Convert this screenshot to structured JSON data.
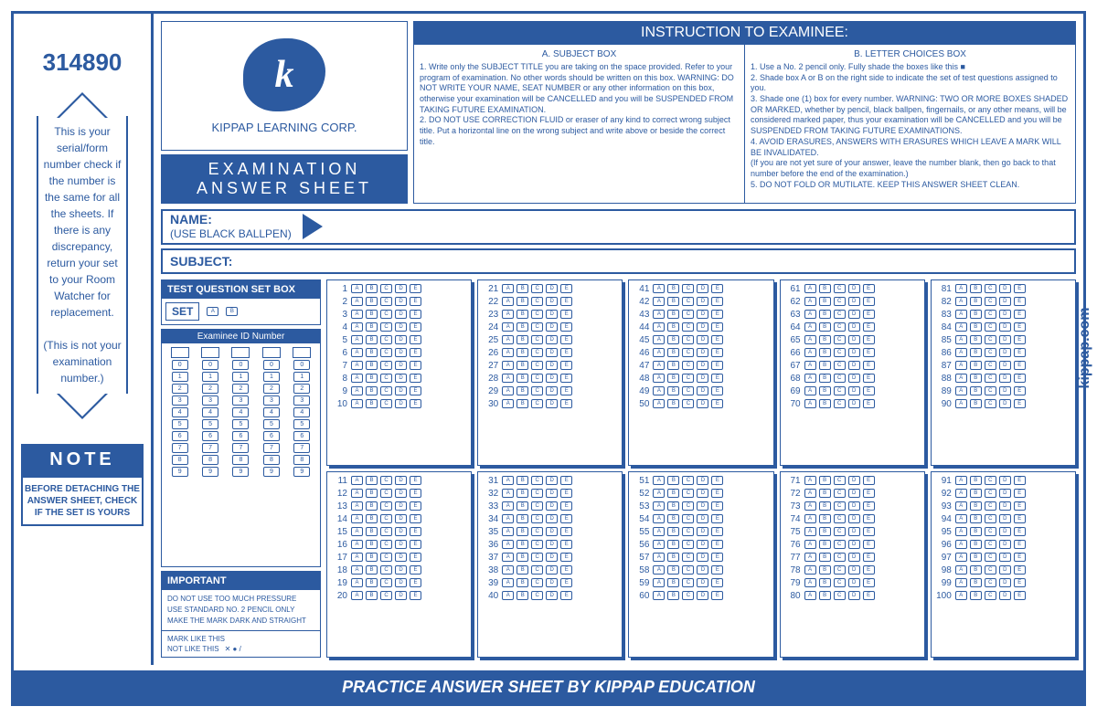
{
  "serial": "314890",
  "left_note": {
    "body": "This is your serial/form number check if the number is the same for all the sheets. If there is any discrepancy, return your set to your Room Watcher for replacement.",
    "paren": "(This is not your examination number.)"
  },
  "note": {
    "title": "NOTE",
    "body": "BEFORE DETACHING THE ANSWER SHEET, CHECK IF THE SET IS YOURS"
  },
  "logo": {
    "letter": "k",
    "company": "KIPPAP LEARNING CORP."
  },
  "exam_title_1": "EXAMINATION",
  "exam_title_2": "ANSWER SHEET",
  "instr": {
    "header": "INSTRUCTION TO EXAMINEE:",
    "a_title": "A. SUBJECT BOX",
    "a_body": "1. Write only the SUBJECT TITLE you are taking on the space provided. Refer to your program of examination. No other words should be written on this box. WARNING: DO NOT WRITE YOUR NAME, SEAT NUMBER or any other information on this box, otherwise your examination will be CANCELLED and you will be SUSPENDED FROM TAKING FUTURE EXAMINATION.\n2. DO NOT USE CORRECTION FLUID or eraser of any kind to correct wrong subject title. Put a horizontal line on the wrong subject and write above or beside the correct title.",
    "b_title": "B. LETTER CHOICES BOX",
    "b_body": "1. Use a No. 2 pencil only. Fully shade the boxes like this ■\n2. Shade box A or B on the right side to indicate the set of test questions assigned to you.\n3. Shade one (1) box for every number. WARNING: TWO OR MORE BOXES SHADED OR MARKED, whether by pencil, black ballpen, fingernails, or any other means, will be considered marked paper, thus your examination will be CANCELLED and you will be SUSPENDED FROM TAKING FUTURE EXAMINATIONS.\n4. AVOID ERASURES, ANSWERS WITH ERASURES WHICH LEAVE A MARK WILL BE INVALIDATED.\n(If you are not yet sure of your answer, leave the number blank, then go back to that number before the end of the examination.)\n5. DO NOT FOLD OR MUTILATE. KEEP THIS ANSWER SHEET CLEAN."
  },
  "name_label": "NAME:",
  "name_sub": "(USE BLACK BALLPEN)",
  "subject_label": "SUBJECT:",
  "tq_title": "TEST QUESTION SET BOX",
  "set_label": "SET",
  "examinee_label": "Examinee ID Number",
  "important": {
    "title": "IMPORTANT",
    "l1": "DO NOT USE TOO MUCH PRESSURE",
    "l2": "USE STANDARD NO. 2 PENCIL ONLY",
    "l3": "MAKE THE MARK DARK AND STRAIGHT",
    "m1": "MARK LIKE THIS",
    "m2": "NOT LIKE THIS"
  },
  "choices": [
    "A",
    "B",
    "C",
    "D",
    "E"
  ],
  "side_url": "kippap.com",
  "footer": "PRACTICE ANSWER SHEET BY KIPPAP EDUCATION",
  "colors": {
    "primary": "#2c5aa0"
  },
  "question_range": {
    "start": 1,
    "end": 100,
    "per_half": 10
  }
}
